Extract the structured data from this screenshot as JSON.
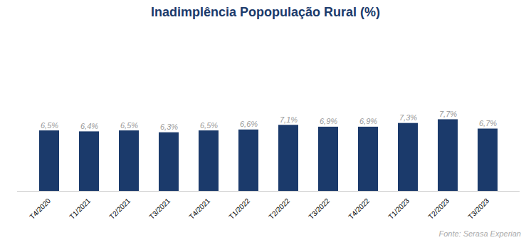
{
  "chart_data": {
    "type": "bar",
    "title": "Inadimplência  Popopulação Rural (%)",
    "categories": [
      "T4/2020",
      "T1/2021",
      "T2/2021",
      "T3/2021",
      "T4/2021",
      "T1/2022",
      "T2/2022",
      "T3/2022",
      "T4/2022",
      "T1/2023",
      "T2/2023",
      "T3/2023"
    ],
    "values": [
      6.5,
      6.4,
      6.5,
      6.3,
      6.5,
      6.6,
      7.1,
      6.9,
      6.9,
      7.3,
      7.7,
      6.7
    ],
    "value_labels": [
      "6,5%",
      "6,4%",
      "6,5%",
      "6,3%",
      "6,5%",
      "6,6%",
      "7,1%",
      "6,9%",
      "6,9%",
      "7,3%",
      "7,7%",
      "6,7%"
    ],
    "color": "#1B3A6B",
    "ylim": [
      0,
      17
    ],
    "data_labels": true,
    "tick_labels": "x",
    "grid": false,
    "annotation": "Fonte: Serasa Experian"
  }
}
